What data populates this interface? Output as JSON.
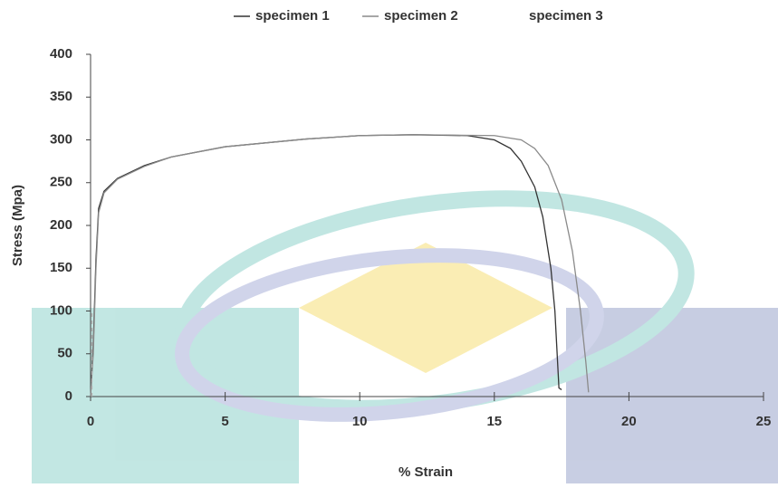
{
  "chart_data": {
    "type": "line",
    "xlabel": "% Strain",
    "ylabel": "Stress  (Mpa)",
    "xlim": [
      0,
      25
    ],
    "xticks": [
      0,
      5,
      10,
      15,
      20,
      25
    ],
    "ylim": [
      0,
      400
    ],
    "yticks": [
      0,
      50,
      100,
      150,
      200,
      250,
      300,
      350,
      400
    ],
    "legend": "top",
    "series": [
      {
        "name": "specimen 1",
        "color": "#333333",
        "x": [
          0,
          0.1,
          0.2,
          0.3,
          0.5,
          1,
          2,
          3,
          5,
          8,
          10,
          12,
          14,
          15,
          15.6,
          16,
          16.5,
          16.8,
          17.1,
          17.25,
          17.4,
          17.5
        ],
        "values": [
          0,
          60,
          160,
          220,
          240,
          255,
          270,
          280,
          292,
          301,
          305,
          306,
          305,
          300,
          290,
          275,
          245,
          210,
          150,
          100,
          10,
          8
        ]
      },
      {
        "name": "specimen 2",
        "color": "#8a8a8a",
        "x": [
          0,
          0.1,
          0.2,
          0.3,
          0.5,
          1,
          2,
          3,
          5,
          8,
          10,
          12,
          15,
          16,
          16.5,
          17,
          17.5,
          17.9,
          18.2,
          18.4,
          18.5
        ],
        "values": [
          0,
          50,
          150,
          215,
          238,
          254,
          269,
          280,
          292,
          301,
          305,
          306,
          305,
          300,
          290,
          270,
          230,
          170,
          100,
          40,
          5
        ]
      },
      {
        "name": "specimen 3",
        "color": "#b0b0b0",
        "x": [
          0.05,
          0.05
        ],
        "values": [
          0,
          100
        ]
      }
    ]
  }
}
